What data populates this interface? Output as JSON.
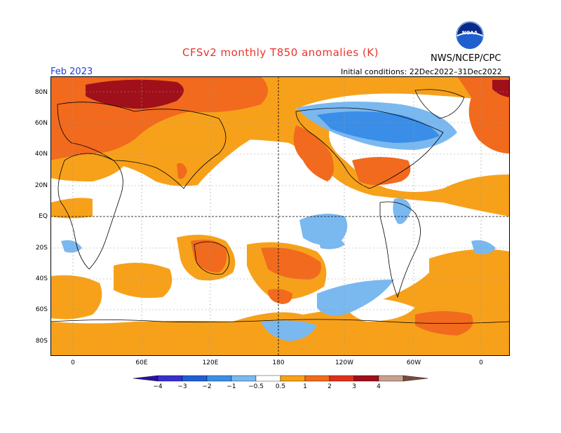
{
  "header": {
    "title": "CFSv2 monthly T850 anomalies (K)",
    "agency": "NWS/NCEP/CPC",
    "valid_month": "Feb 2023",
    "initial_conditions": "Initial conditions: 22Dec2022–31Dec2022",
    "logo_text": "NOAA"
  },
  "map": {
    "lat_labels": [
      "80N",
      "60N",
      "40N",
      "20N",
      "EQ",
      "20S",
      "40S",
      "60S",
      "80S"
    ],
    "lon_labels": [
      "0",
      "60E",
      "120E",
      "180",
      "120W",
      "60W",
      "0"
    ]
  },
  "colorbar": {
    "labels": [
      "-4",
      "-3",
      "-2",
      "-1",
      "-0.5",
      "0.5",
      "1",
      "2",
      "3",
      "4"
    ],
    "colors": [
      "#2a12a0",
      "#3a2ed0",
      "#1f5ed8",
      "#3a8ee8",
      "#7ab8f0",
      "#ffffff",
      "#f7a11a",
      "#f26a1d",
      "#e0301a",
      "#a0101a",
      "#c8a090",
      "#7a4a3a"
    ]
  }
}
